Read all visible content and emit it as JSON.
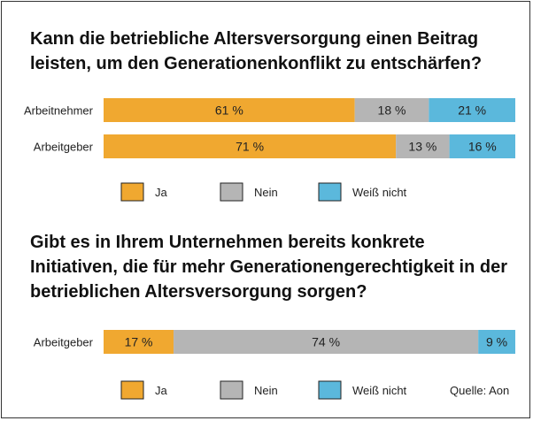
{
  "colors": {
    "ja": "#F0A830",
    "nein": "#B5B5B5",
    "weiss_nicht": "#5BB8DC"
  },
  "legend": [
    {
      "key": "ja",
      "label": "Ja"
    },
    {
      "key": "nein",
      "label": "Nein"
    },
    {
      "key": "weiss_nicht",
      "label": "Weiß nicht"
    }
  ],
  "source": "Quelle: Aon",
  "chart_data": [
    {
      "type": "bar",
      "orientation": "horizontal",
      "stacked": true,
      "title": "Kann die betriebliche Altersversorgung einen Beitrag leisten, um den Generationenkonflikt zu entschärfen?",
      "categories": [
        "Arbeitnehmer",
        "Arbeitgeber"
      ],
      "series": [
        {
          "name": "Ja",
          "color_key": "ja",
          "values": [
            61,
            71
          ],
          "labels": [
            "61 %",
            "71 %"
          ]
        },
        {
          "name": "Nein",
          "color_key": "nein",
          "values": [
            18,
            13
          ],
          "labels": [
            "18 %",
            "13 %"
          ]
        },
        {
          "name": "Weiß nicht",
          "color_key": "weiss_nicht",
          "values": [
            21,
            16
          ],
          "labels": [
            "21 %",
            "16 %"
          ]
        }
      ],
      "xlim": [
        0,
        100
      ],
      "legend_position": "bottom"
    },
    {
      "type": "bar",
      "orientation": "horizontal",
      "stacked": true,
      "title": "Gibt es in Ihrem Unternehmen bereits konkrete Initiativen, die für mehr Generationengerechtigkeit in der betrieblichen Altersversorgung sorgen?",
      "categories": [
        "Arbeitgeber"
      ],
      "series": [
        {
          "name": "Ja",
          "color_key": "ja",
          "values": [
            17
          ],
          "labels": [
            "17 %"
          ]
        },
        {
          "name": "Nein",
          "color_key": "nein",
          "values": [
            74
          ],
          "labels": [
            "74 %"
          ]
        },
        {
          "name": "Weiß nicht",
          "color_key": "weiss_nicht",
          "values": [
            9
          ],
          "labels": [
            "9 %"
          ]
        }
      ],
      "xlim": [
        0,
        100
      ],
      "legend_position": "bottom"
    }
  ]
}
